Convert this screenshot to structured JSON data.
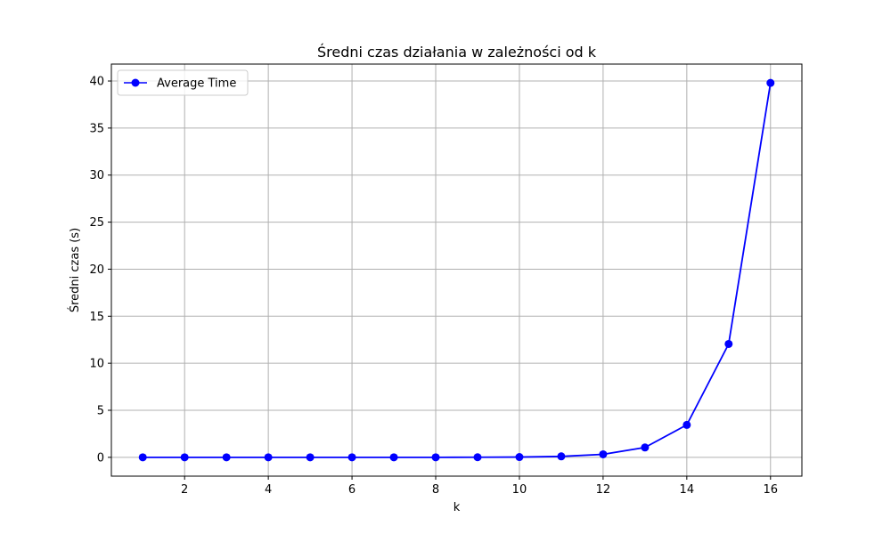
{
  "chart_data": {
    "type": "line",
    "title": "Średni czas działania w zależności od k",
    "xlabel": "k",
    "ylabel": "Średni czas (s)",
    "xlim": [
      0.25,
      16.75
    ],
    "ylim": [
      -2.0,
      41.8
    ],
    "xticks": [
      2,
      4,
      6,
      8,
      10,
      12,
      14,
      16
    ],
    "yticks": [
      0,
      5,
      10,
      15,
      20,
      25,
      30,
      35,
      40
    ],
    "grid": true,
    "legend_position": "top-left",
    "series": [
      {
        "name": "Average Time",
        "color": "#0000ff",
        "marker": "circle",
        "x": [
          1,
          2,
          3,
          4,
          5,
          6,
          7,
          8,
          9,
          10,
          11,
          12,
          13,
          14,
          15,
          16
        ],
        "y": [
          0.0,
          0.0,
          0.0,
          0.0,
          0.0,
          0.0,
          0.0,
          0.0,
          0.01,
          0.03,
          0.1,
          0.32,
          1.05,
          3.45,
          12.05,
          39.8
        ]
      }
    ]
  }
}
